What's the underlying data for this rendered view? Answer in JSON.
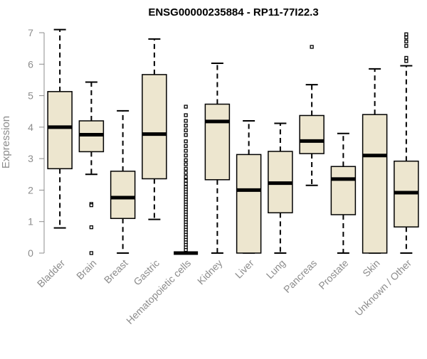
{
  "chart_data": {
    "type": "box",
    "title": "ENSG00000235884 - RP11-77I22.3",
    "xlabel": "",
    "ylabel": "Expression",
    "ylim": [
      0,
      7
    ],
    "yticks": [
      0,
      1,
      2,
      3,
      4,
      5,
      6,
      7
    ],
    "grid": false,
    "box_fill": "#ede6cf",
    "categories": [
      "Bladder",
      "Brain",
      "Breast",
      "Gastric",
      "Hematopoietic cells",
      "Kidney",
      "Liver",
      "Lung",
      "Pancreas",
      "Prostate",
      "Skin",
      "Unknown / Other"
    ],
    "boxes": [
      {
        "min": 0.8,
        "q1": 2.68,
        "median": 4.0,
        "q3": 5.13,
        "max": 7.1,
        "outliers": []
      },
      {
        "min": 2.5,
        "q1": 3.22,
        "median": 3.76,
        "q3": 4.2,
        "max": 5.43,
        "outliers": [
          1.56,
          1.52,
          0.82,
          0.0
        ]
      },
      {
        "min": 0.0,
        "q1": 1.1,
        "median": 1.76,
        "q3": 2.6,
        "max": 4.52,
        "outliers": []
      },
      {
        "min": 1.07,
        "q1": 2.36,
        "median": 3.78,
        "q3": 5.67,
        "max": 6.8,
        "outliers": []
      },
      {
        "min": 0.0,
        "q1": 0.0,
        "median": 0.0,
        "q3": 0.0,
        "max": 0.0,
        "outliers": [
          4.65,
          4.38,
          4.2,
          4.05,
          3.9,
          3.75,
          3.55,
          3.4,
          3.25,
          3.1,
          2.95,
          2.82,
          2.68,
          2.55,
          2.42,
          2.3,
          2.2,
          2.1,
          2.02,
          1.94,
          1.86,
          1.78,
          1.7,
          1.62,
          1.54,
          1.46,
          1.38,
          1.3,
          1.22,
          1.14,
          1.06,
          0.98,
          0.9,
          0.82,
          0.74,
          0.66,
          0.58,
          0.5,
          0.42,
          0.34,
          0.26,
          0.18,
          0.1
        ]
      },
      {
        "min": 0.0,
        "q1": 2.33,
        "median": 4.18,
        "q3": 4.73,
        "max": 6.03,
        "outliers": []
      },
      {
        "min": 0.0,
        "q1": 0.0,
        "median": 2.0,
        "q3": 3.13,
        "max": 4.2,
        "outliers": []
      },
      {
        "min": 0.0,
        "q1": 1.28,
        "median": 2.22,
        "q3": 3.23,
        "max": 4.12,
        "outliers": []
      },
      {
        "min": 2.15,
        "q1": 3.16,
        "median": 3.56,
        "q3": 4.37,
        "max": 5.35,
        "outliers": [
          6.55
        ]
      },
      {
        "min": 0.0,
        "q1": 1.22,
        "median": 2.35,
        "q3": 2.75,
        "max": 3.8,
        "outliers": []
      },
      {
        "min": 0.0,
        "q1": 0.0,
        "median": 3.1,
        "q3": 4.4,
        "max": 5.85,
        "outliers": []
      },
      {
        "min": 0.0,
        "q1": 0.83,
        "median": 1.92,
        "q3": 2.92,
        "max": 5.95,
        "outliers": [
          6.95,
          6.85,
          6.72,
          6.58,
          6.2,
          6.1
        ]
      }
    ]
  }
}
